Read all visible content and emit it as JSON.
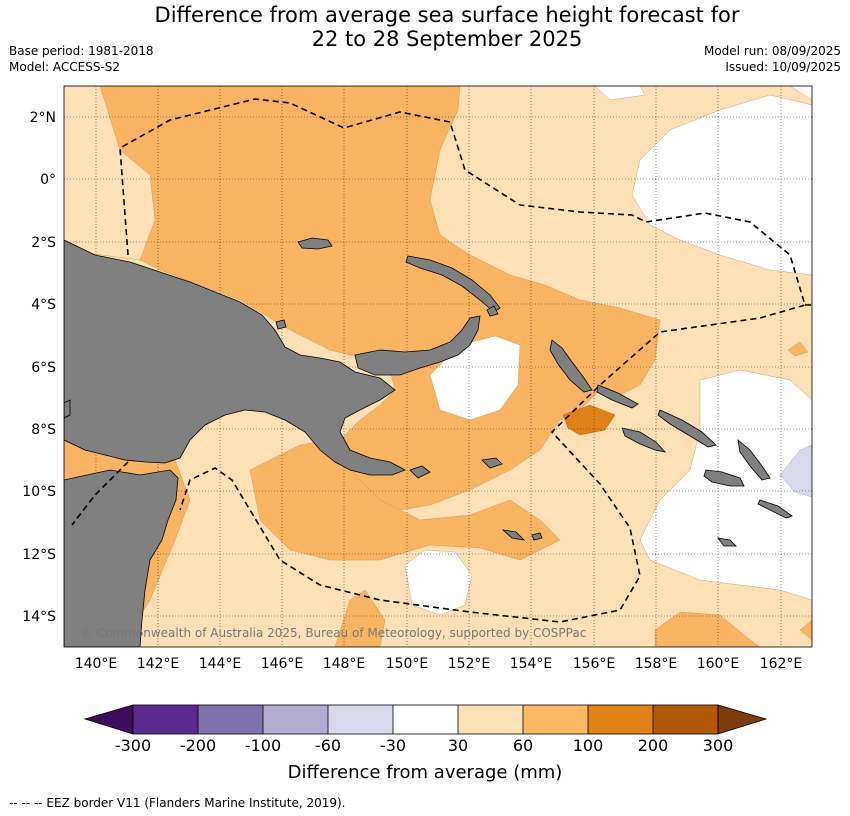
{
  "header": {
    "title_line1": "Difference from average sea surface height forecast for",
    "title_line2": "22 to 28 September 2025",
    "base_period": "Base period: 1981-2018",
    "model": "Model: ACCESS-S2",
    "model_run": "Model run: 08/09/2025",
    "issued": "Issued: 10/09/2025"
  },
  "map": {
    "lat_labels": [
      "2°N",
      "0°",
      "2°S",
      "4°S",
      "6°S",
      "8°S",
      "10°S",
      "12°S",
      "14°S"
    ],
    "lon_labels": [
      "140°E",
      "142°E",
      "144°E",
      "146°E",
      "148°E",
      "150°E",
      "152°E",
      "154°E",
      "156°E",
      "158°E",
      "160°E",
      "162°E"
    ],
    "copyright": "© Commonwealth of Australia 2025, Bureau of Meteorology, supported by COSPPac",
    "colors": {
      "land": "#808080",
      "band_30_60": "#fde0b6",
      "band_60_100": "#f9b461",
      "band_100_200": "#e08016",
      "band_neutral": "#ffffff",
      "band_neg60_neg30": "#d8d9ea"
    }
  },
  "colorbar": {
    "title": "Difference from average (mm)",
    "ticks": [
      "-300",
      "-200",
      "-100",
      "-60",
      "-30",
      "30",
      "60",
      "100",
      "200",
      "300"
    ],
    "colors": [
      "#3f0c5e",
      "#5b2a8e",
      "#8073ac",
      "#b2abd2",
      "#d8daeb",
      "#ffffff",
      "#fee0b6",
      "#fdb863",
      "#e08214",
      "#b35806",
      "#7f3b08"
    ]
  },
  "footer": {
    "legend": "--  --  -- EEZ border V11 (Flanders Marine Institute, 2019)."
  }
}
